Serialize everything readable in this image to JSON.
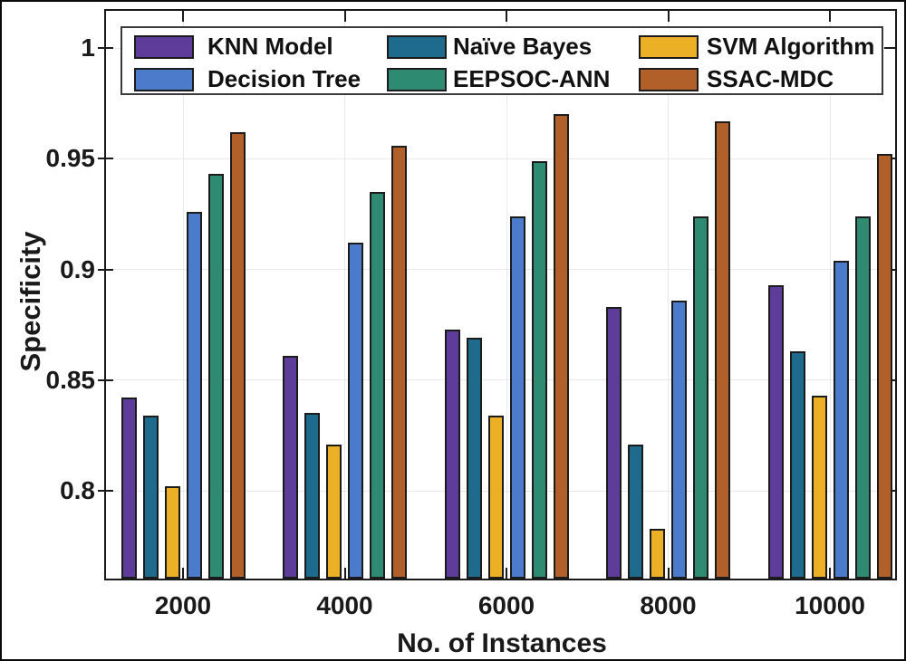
{
  "figure": {
    "background": "#ffffff",
    "frame_color": "#0a0a0a",
    "axis_color": "#1a1a1a",
    "grid_color": "#e9e9e9",
    "text_color": "#1a1a1a"
  },
  "chart_data": {
    "type": "bar",
    "title": "",
    "xlabel": "No. of Instances",
    "ylabel": "Specificity",
    "categories": [
      "2000",
      "4000",
      "6000",
      "8000",
      "10000"
    ],
    "series": [
      {
        "name": "KNN Model",
        "color": "#5e3c99",
        "values": [
          0.842,
          0.861,
          0.873,
          0.883,
          0.893
        ]
      },
      {
        "name": "Naïve Bayes",
        "color": "#1f6b8e",
        "values": [
          0.834,
          0.835,
          0.869,
          0.821,
          0.863
        ]
      },
      {
        "name": "SVM Algorithm",
        "color": "#ebb025",
        "values": [
          0.802,
          0.821,
          0.834,
          0.783,
          0.843
        ]
      },
      {
        "name": "Decision Tree",
        "color": "#4c7bcb",
        "values": [
          0.926,
          0.912,
          0.924,
          0.886,
          0.904
        ]
      },
      {
        "name": "EEPSOC-ANN",
        "color": "#2e8a70",
        "values": [
          0.943,
          0.935,
          0.949,
          0.924,
          0.924
        ]
      },
      {
        "name": "SSAC-MDC",
        "color": "#b06028",
        "values": [
          0.962,
          0.956,
          0.97,
          0.967,
          0.952
        ]
      }
    ],
    "y_tick_labels": [
      "1",
      "0.95",
      "0.9",
      "0.85",
      "0.8"
    ],
    "y_tick_values": [
      1.0,
      0.95,
      0.9,
      0.85,
      0.8
    ],
    "ylim": [
      0.76,
      1.017
    ],
    "grid": "both",
    "legend_position": "top-inside",
    "legend_rows": [
      [
        "KNN Model",
        "Naïve Bayes",
        "SVM Algorithm"
      ],
      [
        "Decision Tree",
        "EEPSOC-ANN",
        "SSAC-MDC"
      ]
    ]
  }
}
